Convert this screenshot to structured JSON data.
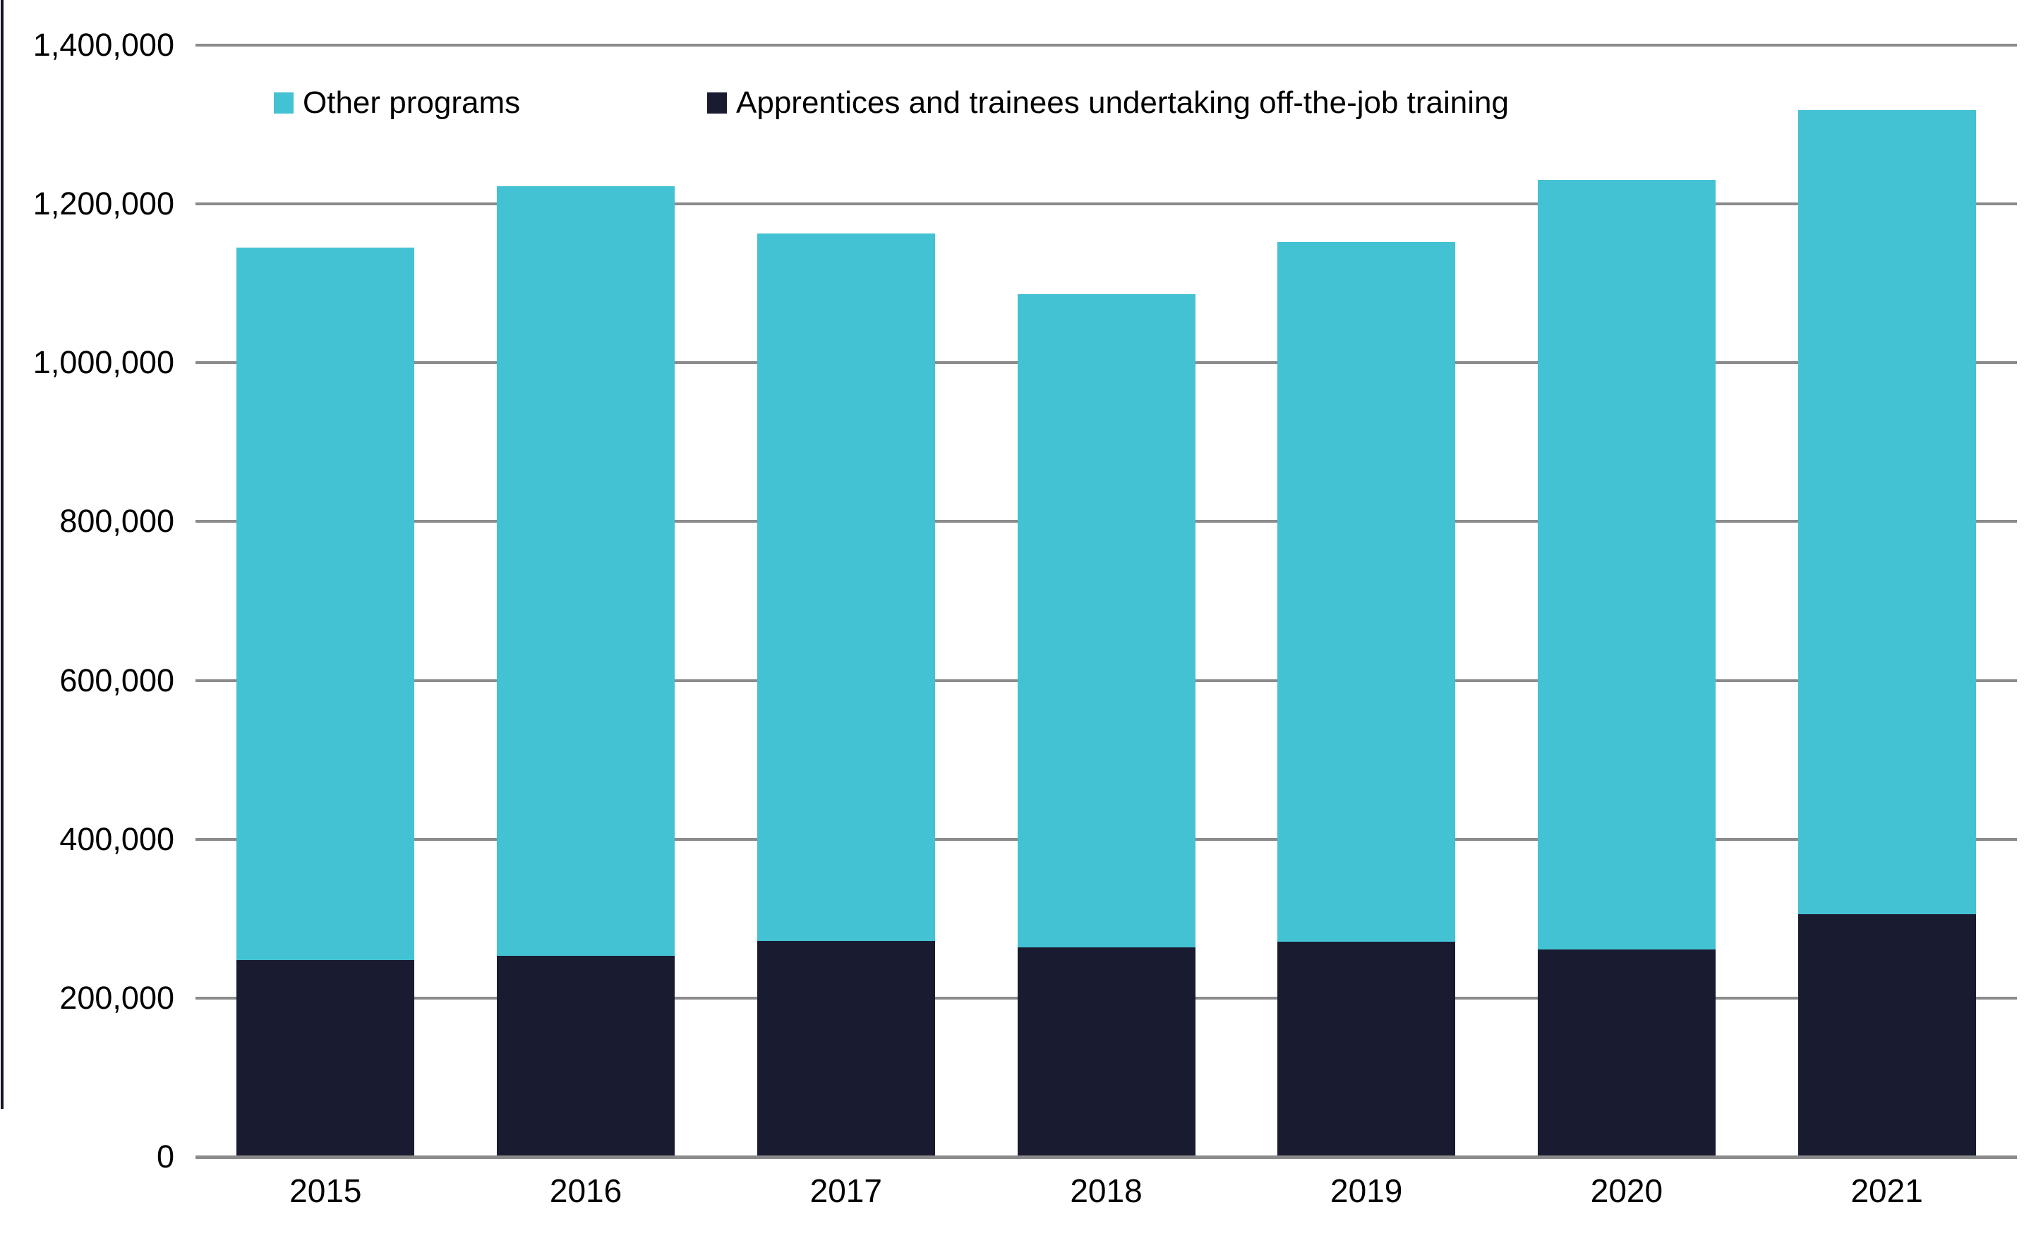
{
  "chart_data": {
    "type": "bar",
    "stacked": true,
    "categories": [
      "2015",
      "2016",
      "2017",
      "2018",
      "2019",
      "2020",
      "2021"
    ],
    "series": [
      {
        "name": "Other programs",
        "color": "#43C2D3",
        "values": [
          897000,
          969000,
          891000,
          822000,
          881000,
          969000,
          1012000
        ]
      },
      {
        "name": "Apprentices and trainees undertaking off-the-job training",
        "color": "#191B30",
        "values": [
          248000,
          253000,
          272000,
          264000,
          271000,
          261000,
          306000
        ]
      }
    ],
    "stack_totals": [
      1145000,
      1222000,
      1163000,
      1086000,
      1152000,
      1230000,
      1318000
    ],
    "bottom_series_index": 1,
    "title": "",
    "xlabel": "",
    "ylabel": "",
    "ylim": [
      0,
      1400000
    ],
    "y_step": 200000,
    "y_tick_labels": [
      "0",
      "200,000",
      "400,000",
      "600,000",
      "800,000",
      "1,000,000",
      "1,200,000",
      "1,400,000"
    ],
    "grid": "horizontal",
    "gridline_color": "#8b8b8b",
    "legend_position": "top"
  }
}
